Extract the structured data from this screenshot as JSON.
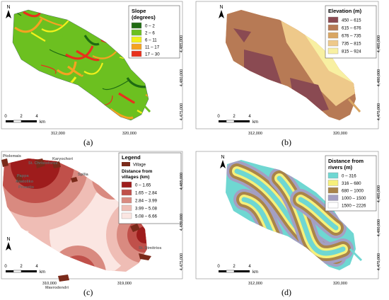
{
  "panels": {
    "a": {
      "caption": "(a)",
      "legend_title": "Slope\n(degrees)",
      "legend_title_lines": [
        "Slope",
        "(degrees)"
      ],
      "legend": [
        {
          "label": "0 – 2",
          "color": "#1f6b12"
        },
        {
          "label": "2 – 6",
          "color": "#6cc020"
        },
        {
          "label": "6 – 11",
          "color": "#f2f01c"
        },
        {
          "label": "11 – 17",
          "color": "#f5a321"
        },
        {
          "label": "17 – 30",
          "color": "#e8301c"
        }
      ],
      "scale_labels": [
        "0",
        "2",
        "4"
      ],
      "scale_unit": "km",
      "x_ticks": [
        "312,000",
        "320,000"
      ],
      "y_ticks": [
        "4,485,000",
        "4,480,000",
        "4,475,000"
      ],
      "north": "N"
    },
    "b": {
      "caption": "(b)",
      "legend_title": "Elevation (m)",
      "legend": [
        {
          "label": "450 – 615",
          "color": "#8a4a52"
        },
        {
          "label": "615 – 676",
          "color": "#b77a55"
        },
        {
          "label": "676 – 735",
          "color": "#d9a663"
        },
        {
          "label": "735 – 815",
          "color": "#eec98a"
        },
        {
          "label": "815 – 924",
          "color": "#f8f0a2"
        }
      ],
      "scale_labels": [
        "0",
        "2",
        "4"
      ],
      "scale_unit": "km",
      "x_ticks": [
        "312,000",
        "320,000"
      ],
      "y_ticks": [
        "4,485,000",
        "4,480,000",
        "4,475,000"
      ],
      "north": "N"
    },
    "c": {
      "caption": "(c)",
      "legend_title": "Legend",
      "village_label": "Village",
      "village_color": "#7a2a1a",
      "distance_title_lines": [
        "Distance from",
        "villages (km)"
      ],
      "legend": [
        {
          "label": "0 – 1.65",
          "color": "#9e1c1c"
        },
        {
          "label": "1.65 – 2.84",
          "color": "#c0504a"
        },
        {
          "label": "2.84 – 3.99",
          "color": "#d98a80"
        },
        {
          "label": "3.99 – 5.08",
          "color": "#efbdb5"
        },
        {
          "label": "5.08 – 6.66",
          "color": "#fbe6e2"
        }
      ],
      "villages": [
        "Ptolemais",
        "St. Christoforos",
        "Karyochori",
        "Spilia",
        "Pappa",
        "Anatoliko",
        "Proastio",
        "Akrini",
        "St. Dimitrios",
        "Mavrodendri"
      ],
      "scale_labels": [
        "0",
        "2",
        "4"
      ],
      "scale_unit": "km",
      "x_ticks": [
        "310,000",
        "319,000"
      ],
      "y_ticks": [
        "4,485,000",
        "4,480,000",
        "4,475,000"
      ],
      "north": "N"
    },
    "d": {
      "caption": "(d)",
      "legend_title_lines": [
        "Distance from",
        "rivers (m)"
      ],
      "legend": [
        {
          "label": "0 – 316",
          "color": "#6fd7d2"
        },
        {
          "label": "316 – 680",
          "color": "#f6f07a"
        },
        {
          "label": "680 – 1000",
          "color": "#a9844a"
        },
        {
          "label": "1000 – 1500",
          "color": "#a49fc2"
        },
        {
          "label": "1500 – 2226",
          "color": "#ffffff"
        }
      ],
      "scale_labels": [
        "0",
        "2",
        "4"
      ],
      "scale_unit": "km",
      "x_ticks": [
        "312,000",
        "320,000"
      ],
      "y_ticks": [
        "4,485,000",
        "4,480,000",
        "4,475,000"
      ],
      "north": "N"
    }
  }
}
